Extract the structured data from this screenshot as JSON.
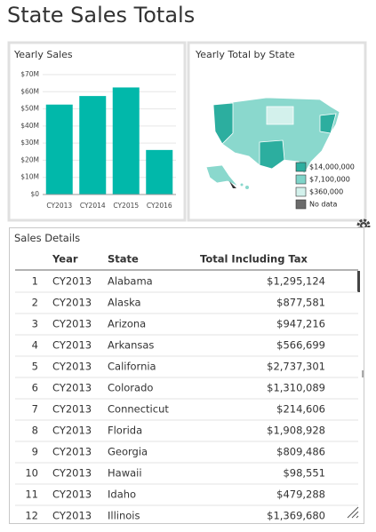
{
  "title": "State Sales Totals",
  "chart_data": {
    "type": "bar",
    "title": "Yearly Sales",
    "categories": [
      "CY2013",
      "CY2014",
      "CY2015",
      "CY2016"
    ],
    "values": [
      52.5,
      57.5,
      62.5,
      26
    ],
    "color": "#01b8aa",
    "ylim": [
      0,
      70
    ],
    "yticks": [
      {
        "value": 0,
        "label": "$0"
      },
      {
        "value": 10,
        "label": "$10M"
      },
      {
        "value": 20,
        "label": "$20M"
      },
      {
        "value": 30,
        "label": "$30M"
      },
      {
        "value": 40,
        "label": "$40M"
      },
      {
        "value": 50,
        "label": "$50M"
      },
      {
        "value": 60,
        "label": "$60M"
      },
      {
        "value": 70,
        "label": "$70M"
      }
    ]
  },
  "map": {
    "title": "Yearly Total by State",
    "legend": [
      {
        "label": "$14,000,000",
        "color": "#2cae9f"
      },
      {
        "label": "$7,100,000",
        "color": "#7fd4c9"
      },
      {
        "label": "$360,000",
        "color": "#d3f1ec"
      },
      {
        "label": "No data",
        "color": "#6b6b6b"
      }
    ]
  },
  "table": {
    "title": "Sales Details",
    "headers": [
      "Year",
      "State",
      "Total Including Tax"
    ],
    "rows": [
      [
        "1",
        "CY2013",
        "Alabama",
        "$1,295,124"
      ],
      [
        "2",
        "CY2013",
        "Alaska",
        "$877,581"
      ],
      [
        "3",
        "CY2013",
        "Arizona",
        "$947,216"
      ],
      [
        "4",
        "CY2013",
        "Arkansas",
        "$566,699"
      ],
      [
        "5",
        "CY2013",
        "California",
        "$2,737,301"
      ],
      [
        "6",
        "CY2013",
        "Colorado",
        "$1,310,089"
      ],
      [
        "7",
        "CY2013",
        "Connecticut",
        "$214,606"
      ],
      [
        "8",
        "CY2013",
        "Florida",
        "$1,908,928"
      ],
      [
        "9",
        "CY2013",
        "Georgia",
        "$809,486"
      ],
      [
        "10",
        "CY2013",
        "Hawaii",
        "$98,551"
      ],
      [
        "11",
        "CY2013",
        "Idaho",
        "$479,288"
      ],
      [
        "12",
        "CY2013",
        "Illinois",
        "$1,369,680"
      ]
    ]
  }
}
